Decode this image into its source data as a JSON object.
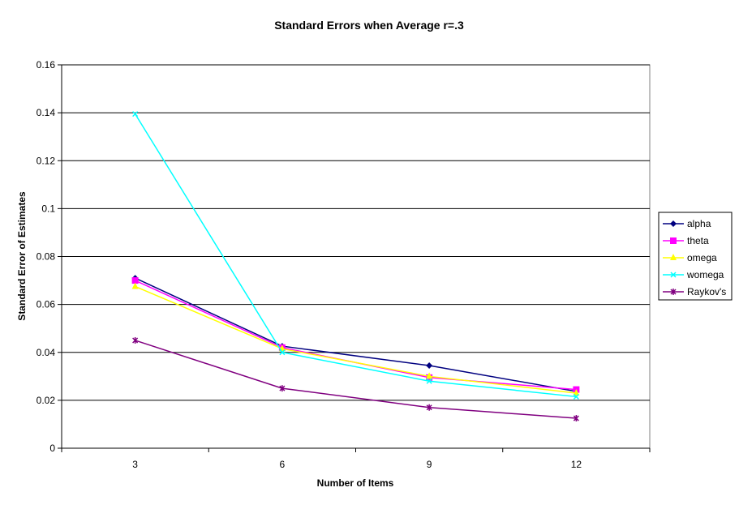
{
  "chart_data": {
    "type": "line",
    "title": "Standard Errors when Average r=.3",
    "xlabel": "Number of Items",
    "ylabel": "Standard Error of Estimates",
    "categories": [
      "3",
      "6",
      "9",
      "12"
    ],
    "ylim": [
      0,
      0.16
    ],
    "yticks": [
      "0",
      "0.02",
      "0.04",
      "0.06",
      "0.08",
      "0.1",
      "0.12",
      "0.14",
      "0.16"
    ],
    "grid": true,
    "legend_position": "right",
    "series": [
      {
        "name": "alpha",
        "color": "#000080",
        "marker": "diamond",
        "values": [
          0.071,
          0.0426,
          0.0345,
          0.0237
        ]
      },
      {
        "name": "theta",
        "color": "#FF00FF",
        "marker": "square",
        "values": [
          0.07,
          0.042,
          0.0295,
          0.0245
        ]
      },
      {
        "name": "omega",
        "color": "#FFFF00",
        "marker": "triangle",
        "values": [
          0.0675,
          0.0415,
          0.03,
          0.023
        ]
      },
      {
        "name": "womega",
        "color": "#00FFFF",
        "marker": "x",
        "values": [
          0.1395,
          0.04,
          0.028,
          0.0215
        ]
      },
      {
        "name": "Raykov's",
        "color": "#800080",
        "marker": "star",
        "values": [
          0.045,
          0.025,
          0.017,
          0.0125
        ]
      }
    ]
  }
}
